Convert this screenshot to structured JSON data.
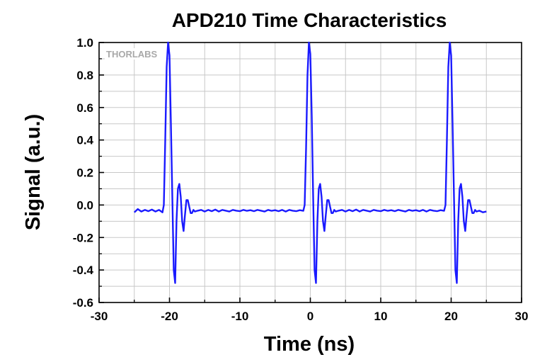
{
  "chart_data": {
    "type": "line",
    "title": "APD210 Time Characteristics",
    "xlabel": "Time (ns)",
    "ylabel": "Signal (a.u.)",
    "xlim": [
      -30,
      30
    ],
    "ylim": [
      -0.6,
      1.0
    ],
    "x_ticks": [
      -30,
      -20,
      -10,
      0,
      10,
      20,
      30
    ],
    "y_ticks": [
      1.0,
      0.8,
      0.6,
      0.4,
      0.2,
      0.0,
      -0.2,
      -0.4,
      -0.6
    ],
    "x_tick_labels": [
      "-30",
      "-20",
      "-10",
      "0",
      "10",
      "20",
      "30"
    ],
    "y_tick_labels": [
      "1.0",
      "0.8",
      "0.6",
      "0.4",
      "0.2",
      "0.0",
      "-0.2",
      "-0.4",
      "-0.6"
    ],
    "grid": true,
    "line_color": "#1a1aff",
    "series": [
      {
        "x": [
          -25.0,
          -24.5,
          -24.0,
          -23.5,
          -23.0,
          -22.5,
          -22.0,
          -21.5,
          -21.0,
          -20.8,
          -20.6,
          -20.4,
          -20.2,
          -20.0,
          -19.8,
          -19.6,
          -19.4,
          -19.2,
          -19.0,
          -18.8,
          -18.6,
          -18.4,
          -18.2,
          -18.0,
          -17.8,
          -17.6,
          -17.4,
          -17.2,
          -17.0,
          -16.8,
          -16.6,
          -16.4,
          -16.0,
          -15.5,
          -15.0,
          -14.5,
          -14.0,
          -13.5,
          -13.0,
          -12.5,
          -12.0,
          -11.5,
          -11.0,
          -10.5,
          -10.0,
          -9.5,
          -9.0,
          -8.5,
          -8.0,
          -7.5,
          -7.0,
          -6.5,
          -6.0,
          -5.5,
          -5.0,
          -4.5,
          -4.0,
          -3.5,
          -3.0,
          -2.5,
          -2.0,
          -1.5,
          -1.0,
          -0.8,
          -0.6,
          -0.4,
          -0.2,
          0.0,
          0.2,
          0.4,
          0.6,
          0.8,
          1.0,
          1.2,
          1.4,
          1.6,
          1.8,
          2.0,
          2.2,
          2.4,
          2.6,
          2.8,
          3.0,
          3.2,
          3.4,
          3.6,
          4.0,
          4.5,
          5.0,
          5.5,
          6.0,
          6.5,
          7.0,
          7.5,
          8.0,
          8.5,
          9.0,
          9.5,
          10.0,
          10.5,
          11.0,
          11.5,
          12.0,
          12.5,
          13.0,
          13.5,
          14.0,
          14.5,
          15.0,
          15.5,
          16.0,
          16.5,
          17.0,
          17.5,
          18.0,
          18.5,
          19.0,
          19.2,
          19.4,
          19.6,
          19.8,
          20.0,
          20.2,
          20.4,
          20.6,
          20.8,
          21.0,
          21.2,
          21.4,
          21.6,
          21.8,
          22.0,
          22.2,
          22.4,
          22.6,
          22.8,
          23.0,
          23.2,
          23.4,
          23.6,
          24.0,
          24.5,
          25.0
        ],
        "y": [
          -0.045,
          -0.025,
          -0.04,
          -0.03,
          -0.038,
          -0.028,
          -0.04,
          -0.03,
          -0.045,
          0.0,
          0.4,
          0.85,
          1.0,
          0.92,
          0.5,
          0.05,
          -0.4,
          -0.48,
          -0.1,
          0.1,
          0.13,
          0.05,
          -0.1,
          -0.16,
          -0.06,
          0.03,
          0.03,
          -0.01,
          -0.05,
          -0.05,
          -0.03,
          -0.04,
          -0.035,
          -0.03,
          -0.04,
          -0.03,
          -0.038,
          -0.028,
          -0.04,
          -0.03,
          -0.035,
          -0.04,
          -0.03,
          -0.035,
          -0.038,
          -0.03,
          -0.036,
          -0.032,
          -0.038,
          -0.03,
          -0.035,
          -0.04,
          -0.03,
          -0.036,
          -0.032,
          -0.038,
          -0.03,
          -0.04,
          -0.03,
          -0.035,
          -0.038,
          -0.032,
          -0.036,
          0.0,
          0.35,
          0.8,
          1.0,
          0.93,
          0.55,
          0.05,
          -0.4,
          -0.48,
          -0.1,
          0.1,
          0.13,
          0.05,
          -0.1,
          -0.16,
          -0.06,
          0.03,
          0.03,
          -0.01,
          -0.05,
          -0.05,
          -0.03,
          -0.04,
          -0.035,
          -0.03,
          -0.04,
          -0.03,
          -0.038,
          -0.028,
          -0.04,
          -0.03,
          -0.035,
          -0.04,
          -0.03,
          -0.035,
          -0.038,
          -0.03,
          -0.036,
          -0.032,
          -0.038,
          -0.03,
          -0.035,
          -0.04,
          -0.03,
          -0.036,
          -0.032,
          -0.038,
          -0.03,
          -0.04,
          -0.03,
          -0.035,
          -0.038,
          -0.032,
          -0.036,
          0.0,
          0.4,
          0.85,
          1.0,
          0.92,
          0.5,
          0.05,
          -0.4,
          -0.48,
          -0.1,
          0.1,
          0.13,
          0.05,
          -0.1,
          -0.16,
          -0.06,
          0.03,
          0.03,
          -0.01,
          -0.05,
          -0.05,
          -0.03,
          -0.04,
          -0.035,
          -0.045,
          -0.04
        ]
      }
    ]
  },
  "logo": {
    "text": "THORLABS"
  }
}
